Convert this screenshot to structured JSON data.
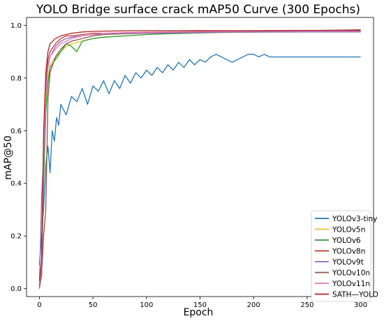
{
  "chart_data": {
    "type": "line",
    "title": "YOLO Bridge surface crack mAP50 Curve (300 Epochs)",
    "xlabel": "Epoch",
    "ylabel": "mAP@50",
    "xlim": [
      -12,
      312
    ],
    "ylim": [
      -0.03,
      1.03
    ],
    "xticks": [
      0,
      50,
      100,
      150,
      200,
      250,
      300
    ],
    "xtick_labels": [
      "0",
      "50",
      "100",
      "150",
      "200",
      "250",
      "300"
    ],
    "yticks": [
      0.0,
      0.2,
      0.4,
      0.6,
      0.8,
      1.0
    ],
    "ytick_labels": [
      "0.0",
      "0.2",
      "0.4",
      "0.6",
      "0.8",
      "1.0"
    ],
    "grid": false,
    "legend_position": "bottom-right",
    "series": [
      {
        "name": "YOLOv3-tiny",
        "color": "#1f77b4",
        "x": [
          0,
          2,
          4,
          6,
          8,
          10,
          12,
          14,
          16,
          18,
          20,
          25,
          30,
          35,
          40,
          45,
          50,
          55,
          60,
          65,
          70,
          75,
          80,
          85,
          90,
          95,
          100,
          105,
          110,
          115,
          120,
          125,
          130,
          135,
          140,
          145,
          150,
          155,
          160,
          165,
          170,
          175,
          180,
          185,
          190,
          195,
          200,
          205,
          210,
          215,
          220,
          250,
          300
        ],
        "y": [
          0.09,
          0.2,
          0.3,
          0.47,
          0.54,
          0.44,
          0.6,
          0.56,
          0.65,
          0.62,
          0.7,
          0.66,
          0.73,
          0.71,
          0.76,
          0.7,
          0.77,
          0.75,
          0.79,
          0.74,
          0.79,
          0.76,
          0.81,
          0.78,
          0.82,
          0.8,
          0.83,
          0.81,
          0.84,
          0.82,
          0.85,
          0.83,
          0.86,
          0.84,
          0.87,
          0.85,
          0.87,
          0.86,
          0.88,
          0.89,
          0.88,
          0.87,
          0.86,
          0.87,
          0.88,
          0.89,
          0.89,
          0.88,
          0.89,
          0.88,
          0.88,
          0.88,
          0.88
        ]
      },
      {
        "name": "YOLOv5n",
        "color": "#e8c32a",
        "x": [
          0,
          2,
          4,
          6,
          8,
          10,
          15,
          20,
          25,
          30,
          40,
          50,
          60,
          80,
          100,
          120,
          140,
          160,
          180,
          200,
          250,
          300
        ],
        "y": [
          0.02,
          0.07,
          0.45,
          0.7,
          0.8,
          0.85,
          0.88,
          0.9,
          0.92,
          0.93,
          0.94,
          0.95,
          0.955,
          0.96,
          0.965,
          0.968,
          0.97,
          0.972,
          0.973,
          0.974,
          0.975,
          0.976
        ]
      },
      {
        "name": "YOLOv6",
        "color": "#2ca02c",
        "x": [
          0,
          2,
          4,
          6,
          8,
          10,
          15,
          20,
          25,
          30,
          35,
          40,
          50,
          60,
          80,
          100,
          120,
          140,
          160,
          180,
          200,
          250,
          300
        ],
        "y": [
          0.01,
          0.05,
          0.4,
          0.67,
          0.78,
          0.84,
          0.87,
          0.9,
          0.93,
          0.92,
          0.9,
          0.94,
          0.95,
          0.955,
          0.96,
          0.965,
          0.968,
          0.97,
          0.972,
          0.974,
          0.975,
          0.976,
          0.977
        ]
      },
      {
        "name": "YOLOv8n",
        "color": "#c0392b",
        "x": [
          0,
          2,
          4,
          6,
          8,
          10,
          15,
          20,
          25,
          30,
          40,
          50,
          60,
          80,
          100,
          120,
          140,
          160,
          180,
          200,
          250,
          300
        ],
        "y": [
          0.02,
          0.1,
          0.55,
          0.78,
          0.87,
          0.9,
          0.93,
          0.95,
          0.96,
          0.96,
          0.965,
          0.97,
          0.97,
          0.972,
          0.974,
          0.975,
          0.976,
          0.977,
          0.978,
          0.979,
          0.98,
          0.98
        ]
      },
      {
        "name": "YOLOv9t",
        "color": "#9467bd",
        "x": [
          0,
          2,
          4,
          6,
          8,
          10,
          15,
          20,
          25,
          30,
          40,
          50,
          60,
          80,
          100,
          120,
          140,
          160,
          180,
          200,
          250,
          300
        ],
        "y": [
          0.01,
          0.34,
          0.5,
          0.75,
          0.85,
          0.88,
          0.92,
          0.94,
          0.95,
          0.955,
          0.96,
          0.965,
          0.965,
          0.968,
          0.97,
          0.971,
          0.972,
          0.973,
          0.974,
          0.974,
          0.975,
          0.975
        ]
      },
      {
        "name": "YOLOv10n",
        "color": "#8c564b",
        "x": [
          0,
          2,
          4,
          6,
          8,
          10,
          15,
          20,
          25,
          30,
          40,
          50,
          60,
          80,
          100,
          120,
          140,
          160,
          180,
          200,
          250,
          300
        ],
        "y": [
          0.0,
          0.05,
          0.2,
          0.3,
          0.72,
          0.82,
          0.88,
          0.91,
          0.93,
          0.94,
          0.95,
          0.96,
          0.965,
          0.97,
          0.972,
          0.974,
          0.975,
          0.976,
          0.977,
          0.978,
          0.98,
          0.983
        ]
      },
      {
        "name": "YOLOv11n",
        "color": "#e377c2",
        "x": [
          0,
          2,
          4,
          6,
          8,
          10,
          15,
          20,
          25,
          30,
          40,
          50,
          60,
          80,
          100,
          120,
          140,
          160,
          180,
          200,
          250,
          300
        ],
        "y": [
          0.02,
          0.08,
          0.5,
          0.74,
          0.84,
          0.88,
          0.91,
          0.93,
          0.94,
          0.95,
          0.96,
          0.965,
          0.97,
          0.972,
          0.973,
          0.974,
          0.975,
          0.976,
          0.977,
          0.978,
          0.978,
          0.978
        ]
      },
      {
        "name": "SATH—YOLO",
        "color": "#b22222",
        "x": [
          0,
          2,
          4,
          6,
          8,
          10,
          15,
          20,
          25,
          30,
          40,
          50,
          60,
          80,
          100,
          120,
          140,
          160,
          180,
          200,
          250,
          300
        ],
        "y": [
          0.03,
          0.1,
          0.6,
          0.82,
          0.9,
          0.93,
          0.95,
          0.96,
          0.965,
          0.97,
          0.975,
          0.977,
          0.978,
          0.979,
          0.98,
          0.98,
          0.98,
          0.98,
          0.98,
          0.98,
          0.981,
          0.981
        ]
      }
    ]
  }
}
